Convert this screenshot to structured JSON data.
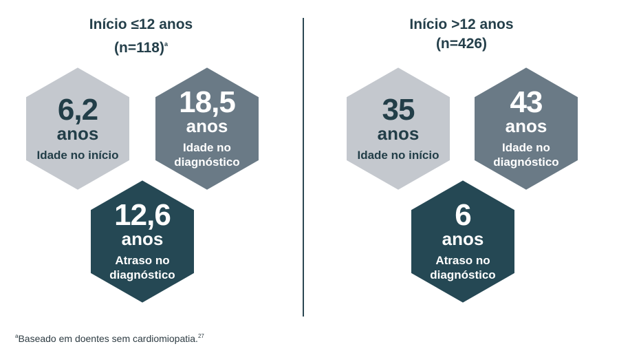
{
  "panels": [
    {
      "title_line1": "Início ≤12 anos",
      "title_line2": "(n=118)",
      "title_sup": "a",
      "hexes": [
        {
          "number": "6,2",
          "unit": "anos",
          "label": "Idade no início",
          "color": "#c4c8ce"
        },
        {
          "number": "18,5",
          "unit": "anos",
          "label": "Idade no diagnóstico",
          "color": "#6a7a86"
        },
        {
          "number": "12,6",
          "unit": "anos",
          "label": "Atraso no diagnóstico",
          "color": "#254854"
        }
      ]
    },
    {
      "title_line1": "Início >12 anos",
      "title_line2": "(n=426)",
      "title_sup": "",
      "hexes": [
        {
          "number": "35",
          "unit": "anos",
          "label": "Idade no início",
          "color": "#c4c8ce"
        },
        {
          "number": "43",
          "unit": "anos",
          "label": "Idade no diagnóstico",
          "color": "#6a7a86"
        },
        {
          "number": "6",
          "unit": "anos",
          "label": "Atraso no diagnóstico",
          "color": "#254854"
        }
      ]
    }
  ],
  "footnote": {
    "marker": "a",
    "text": "Baseado em doentes sem cardiomiopatia.",
    "ref": "27"
  }
}
